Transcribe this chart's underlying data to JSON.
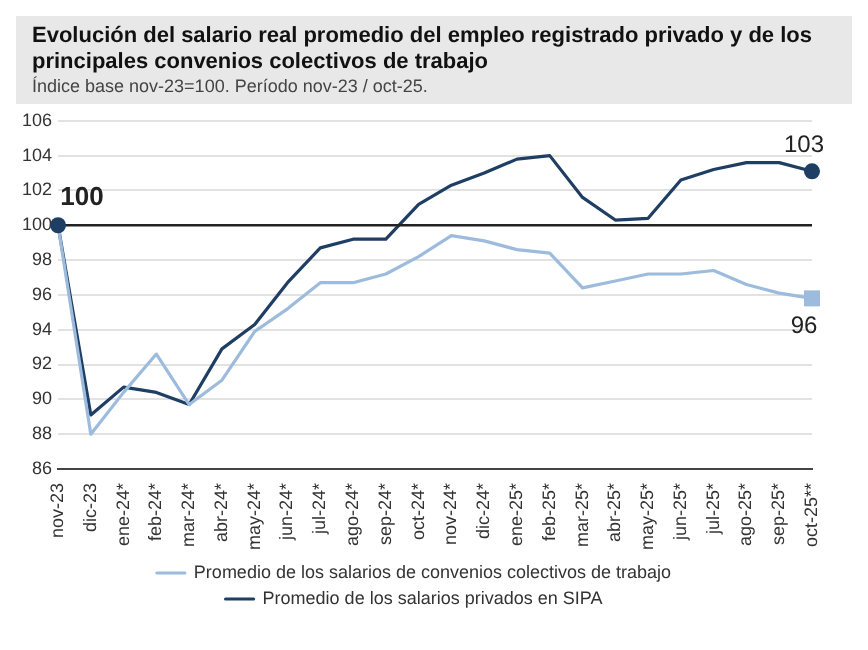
{
  "chart_data": {
    "type": "line",
    "title": "Evolución del salario real promedio del empleo registrado privado y de los principales convenios colectivos de trabajo",
    "subtitle": "Índice base nov-23=100. Período nov-23 / oct-25.",
    "categories": [
      "nov-23",
      "dic-23",
      "ene-24*",
      "feb-24*",
      "mar-24*",
      "abr-24*",
      "may-24*",
      "jun-24*",
      "jul-24*",
      "ago-24*",
      "sep-24*",
      "oct-24*",
      "nov-24*",
      "dic-24*",
      "ene-25*",
      "feb-25*",
      "mar-25*",
      "abr-25*",
      "may-25*",
      "jun-25*",
      "jul-25*",
      "ago-25*",
      "sep-25*",
      "oct-25**"
    ],
    "series": [
      {
        "name": "Promedio de los salarios de convenios colectivos de trabajo",
        "color": "#9dbbdc",
        "values": [
          100,
          88.0,
          90.4,
          92.6,
          89.7,
          91.1,
          93.9,
          95.2,
          96.7,
          96.7,
          97.2,
          98.2,
          99.4,
          99.1,
          98.6,
          98.4,
          96.4,
          96.8,
          97.2,
          97.2,
          97.4,
          96.6,
          96.1,
          95.8
        ]
      },
      {
        "name": "Promedio de los salarios privados en SIPA",
        "color": "#1f3e64",
        "values": [
          100,
          89.1,
          90.7,
          90.4,
          89.7,
          92.9,
          94.3,
          96.7,
          98.7,
          99.2,
          99.2,
          101.2,
          102.3,
          103.0,
          103.8,
          104.0,
          101.6,
          100.3,
          100.4,
          102.6,
          103.2,
          103.6,
          103.6,
          103.1
        ]
      }
    ],
    "ylim": [
      86,
      106
    ],
    "yticks": [
      86,
      88,
      90,
      92,
      94,
      96,
      98,
      100,
      102,
      104,
      106
    ],
    "grid": "y",
    "legend": "bottom",
    "line_style": "solid",
    "marker": "none",
    "ref_lines": [
      {
        "axis": "y",
        "value": 100,
        "color": "#222222"
      }
    ],
    "annotations": [
      {
        "text": "100",
        "x": "nov-23",
        "y": 100
      },
      {
        "text": "103",
        "x": "oct-25**",
        "y": 103.1
      },
      {
        "text": "96",
        "x": "oct-25**",
        "y": 95.8
      }
    ]
  }
}
